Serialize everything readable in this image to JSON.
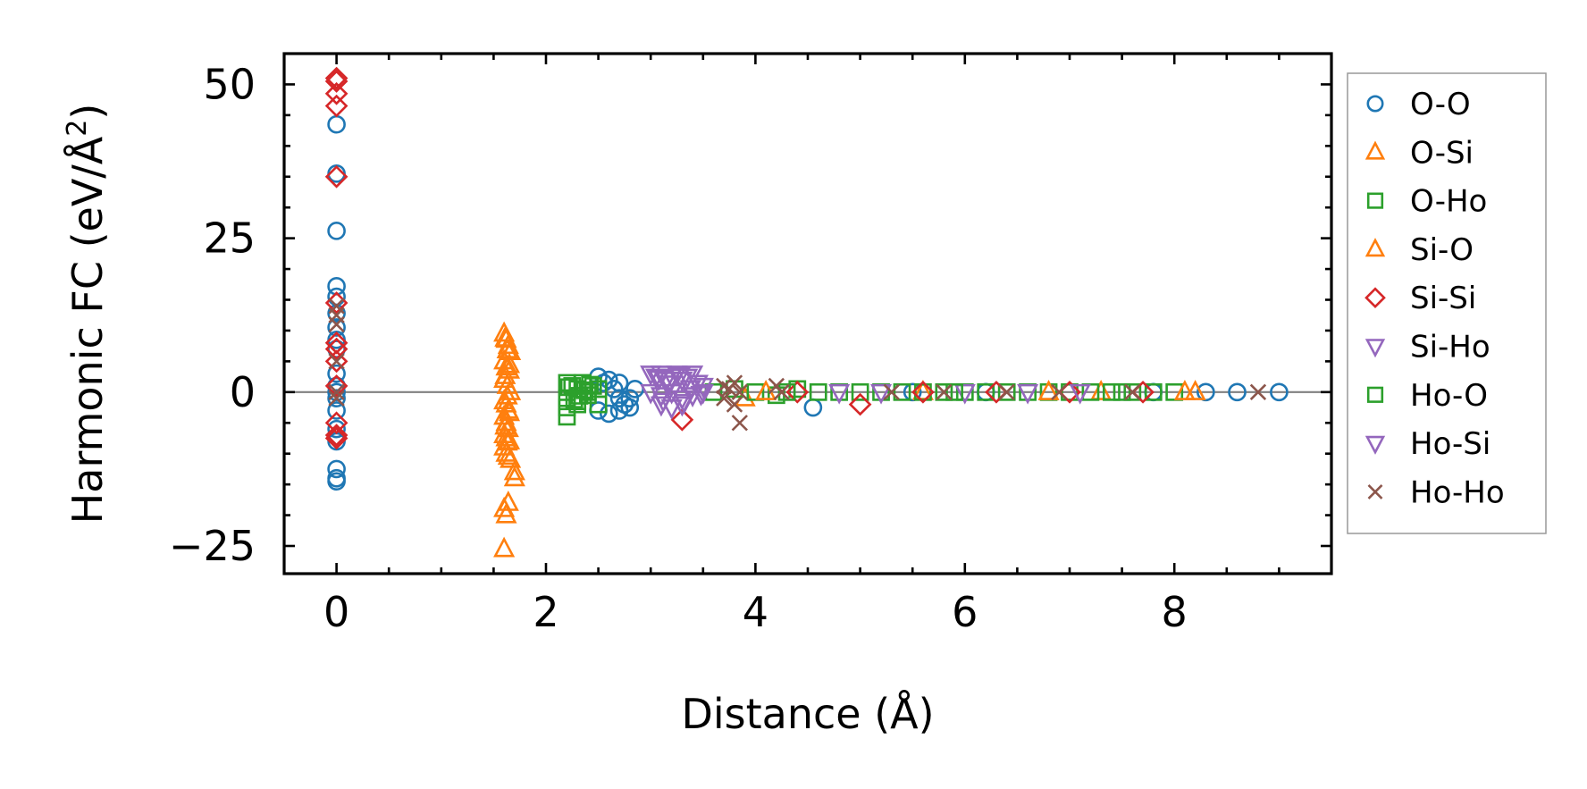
{
  "chart_data": {
    "type": "scatter",
    "title": "",
    "xlabel": "Distance (Å)",
    "ylabel": {
      "prefix": "Harmonic FC (eV/Å",
      "sup": "2",
      "suffix": ")"
    },
    "xlim": [
      -0.5,
      9.5
    ],
    "ylim": [
      -29.5,
      55
    ],
    "xticks": [
      0,
      2,
      4,
      6,
      8
    ],
    "xtick_labels": [
      "0",
      "2",
      "4",
      "6",
      "8"
    ],
    "yticks": [
      -25,
      0,
      25,
      50
    ],
    "ytick_labels": [
      "−25",
      "0",
      "25",
      "50"
    ],
    "zero_line": 0,
    "legend_position": "outside-right",
    "series": [
      {
        "name": "O-O",
        "marker": "circle",
        "color": "#1f77b4",
        "x": [
          0,
          0,
          0,
          0,
          0,
          0,
          0,
          0,
          0,
          0,
          0,
          0,
          0,
          0,
          0,
          0,
          0,
          0,
          0,
          2.5,
          2.55,
          2.6,
          2.65,
          2.7,
          2.7,
          2.75,
          2.8,
          2.85,
          2.5,
          2.6,
          2.7,
          2.8,
          4.55,
          5.5,
          6.2,
          7.8,
          8.3,
          8.6,
          9.0
        ],
        "y": [
          43.5,
          35.5,
          26.2,
          17.2,
          15.5,
          12.8,
          10.5,
          8.5,
          7,
          3,
          1,
          0,
          -1,
          -3,
          -6,
          -8,
          -12.5,
          -14,
          -14.5,
          2.5,
          1.5,
          2,
          0.5,
          1.5,
          -1,
          -2,
          -1,
          0.5,
          -3,
          -3.5,
          -3,
          -2.5,
          -2.5,
          0,
          0,
          0,
          0,
          0,
          0
        ]
      },
      {
        "name": "O-Si",
        "marker": "triangle-up",
        "color": "#ff7f0e",
        "x": [
          1.6,
          1.62,
          1.64,
          1.66,
          1.6,
          1.62,
          1.65,
          1.6,
          1.63,
          1.66,
          1.6,
          1.62,
          1.64,
          1.6,
          1.62,
          1.64,
          1.6,
          1.62,
          1.65,
          1.6,
          1.62,
          1.64,
          1.66,
          1.7,
          1.7,
          1.6,
          1.62,
          1.64,
          1.6,
          3.9,
          5.6,
          7.3,
          8.2
        ],
        "y": [
          9.5,
          8.5,
          7.5,
          6.5,
          5,
          4,
          3.5,
          2,
          1,
          0,
          -1.5,
          -2,
          -3,
          -4,
          -5,
          -6,
          -7,
          -7.5,
          -8,
          -9,
          -10,
          -10.5,
          -11,
          -14,
          -13,
          -19,
          -20,
          -18,
          -25.5,
          -1,
          0,
          0,
          0
        ]
      },
      {
        "name": "O-Ho",
        "marker": "square",
        "color": "#2ca02c",
        "x": [
          2.2,
          2.25,
          2.3,
          2.35,
          2.4,
          2.45,
          2.5,
          2.2,
          2.3,
          2.4,
          2.5,
          2.2,
          2.3,
          2.2,
          3.6,
          3.8,
          4.0,
          4.2,
          4.4,
          4.6,
          4.8,
          5.0,
          5.2,
          5.4,
          5.6,
          5.8,
          6.0,
          6.2,
          6.4,
          6.6,
          6.8,
          7.0,
          7.2,
          7.4,
          7.6,
          7.8,
          8.0
        ],
        "y": [
          1.5,
          1,
          0.5,
          1.5,
          0,
          1,
          0.5,
          -1,
          -1.5,
          -0.5,
          -2,
          -2.5,
          -2,
          -4,
          0,
          0.5,
          0,
          -0.5,
          0.5,
          0,
          0,
          0,
          0,
          0,
          0,
          0,
          0,
          0,
          0,
          0,
          0,
          0,
          0,
          0,
          0,
          0,
          0
        ]
      },
      {
        "name": "Si-O",
        "marker": "triangle-up",
        "color": "#ff7f0e",
        "x": [
          1.61,
          1.63,
          1.65,
          1.61,
          1.63,
          1.65,
          1.61,
          1.63,
          4.1,
          6.8,
          8.1
        ],
        "y": [
          8.7,
          6.8,
          4.4,
          2.6,
          -0.7,
          -3.4,
          -5.6,
          -8.2,
          0,
          0,
          0
        ]
      },
      {
        "name": "Si-Si",
        "marker": "diamond",
        "color": "#d62728",
        "x": [
          0,
          0,
          0,
          0,
          0,
          0,
          0,
          0,
          0,
          0,
          0,
          0,
          0,
          3.3,
          4.4,
          5.0,
          5.6,
          6.3,
          7.0,
          7.7
        ],
        "y": [
          51,
          50.5,
          48.5,
          46.5,
          35,
          14.5,
          8,
          7,
          5,
          1,
          -5,
          -7,
          -7.5,
          -4.5,
          0,
          -2,
          0,
          0,
          0,
          0
        ]
      },
      {
        "name": "Si-Ho",
        "marker": "triangle-down",
        "color": "#9467bd",
        "x": [
          3.0,
          3.05,
          3.1,
          3.15,
          3.2,
          3.25,
          3.3,
          3.35,
          3.4,
          3.45,
          3.5,
          3.0,
          3.1,
          3.2,
          3.3,
          3.4,
          3.5,
          3.1,
          3.2,
          3.3,
          4.8,
          6.0,
          7.1
        ],
        "y": [
          3,
          2.5,
          3,
          2,
          2.5,
          3,
          2,
          2.5,
          3,
          1.5,
          1,
          0,
          -0.5,
          0,
          -1,
          -0.5,
          0,
          -2,
          -2.5,
          -2,
          0,
          0,
          0
        ]
      },
      {
        "name": "Ho-O",
        "marker": "square",
        "color": "#2ca02c",
        "x": [
          2.22,
          2.32,
          2.42,
          2.27,
          2.37,
          4.3,
          5.9,
          7.5
        ],
        "y": [
          0.8,
          -0.6,
          1.2,
          -1.2,
          0.3,
          0,
          0,
          0
        ]
      },
      {
        "name": "Ho-Si",
        "marker": "triangle-down",
        "color": "#9467bd",
        "x": [
          3.08,
          3.18,
          3.28,
          3.38,
          3.48,
          3.12,
          3.32,
          5.2,
          6.6
        ],
        "y": [
          2.2,
          1.4,
          2.7,
          0.6,
          -0.3,
          -1.4,
          -1.6,
          0,
          0
        ]
      },
      {
        "name": "Ho-Ho",
        "marker": "x",
        "color": "#8c564b",
        "x": [
          0,
          0,
          0,
          0,
          0,
          0,
          3.7,
          3.75,
          3.8,
          3.85,
          3.7,
          3.8,
          3.85,
          4.2,
          4.25,
          5.3,
          5.8,
          6.4,
          6.9,
          7.6,
          8.8
        ],
        "y": [
          14,
          12.5,
          11,
          5,
          0,
          -1,
          1,
          0.5,
          1.5,
          0,
          -1,
          -2,
          -5,
          1,
          0,
          0,
          0,
          0,
          0,
          0,
          0
        ]
      }
    ]
  }
}
